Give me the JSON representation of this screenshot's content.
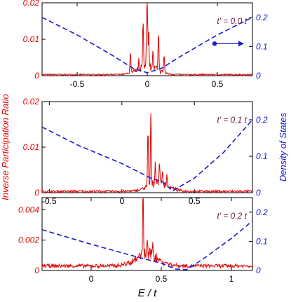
{
  "figure": {
    "ylabel_left": "Inverse Participation Ratio",
    "ylabel_right": "Density of States",
    "xlabel": "E / t"
  },
  "colors": {
    "ipr": "#e00000",
    "dos": "#1a1ad6",
    "annotation": "#6b1a4a",
    "axis": "#000000"
  },
  "chart_data": [
    {
      "type": "line",
      "panel": "top",
      "annotation": "t' = 0.0 t",
      "xlim": [
        -0.75,
        0.75
      ],
      "ylim_left": [
        0,
        0.02
      ],
      "ylim_right": [
        0,
        0.25
      ],
      "x_ticks": [
        "-0.5",
        "0",
        "0.5"
      ],
      "x_tick_values": [
        -0.5,
        0,
        0.5
      ],
      "y_left_ticks": [
        "0",
        "0.01",
        "0.02"
      ],
      "y_left_tick_values": [
        0,
        0.01,
        0.02
      ],
      "y_right_ticks": [
        "0",
        "0.1",
        "0.2"
      ],
      "y_right_tick_values": [
        0,
        0.1,
        0.2
      ],
      "series": [
        {
          "axis": "left",
          "style": "solid",
          "peaks": [
            [
              -0.12,
              0.006
            ],
            [
              -0.06,
              0.003
            ],
            [
              -0.03,
              0.012
            ],
            [
              -0.005,
              0.008
            ],
            [
              0.0,
              0.02
            ],
            [
              0.01,
              0.009
            ],
            [
              0.04,
              0.004
            ],
            [
              0.08,
              0.011
            ],
            [
              0.12,
              0.005
            ]
          ],
          "baseline": 0.0003,
          "envelope_center": 0,
          "envelope_width": 0.1,
          "envelope_height": 0.0025,
          "noise": 0.0002
        },
        {
          "axis": "right",
          "style": "dashed",
          "points": [
            [
              -0.75,
              0.2
            ],
            [
              -0.5,
              0.14
            ],
            [
              -0.25,
              0.07
            ],
            [
              -0.1,
              0.025
            ],
            [
              0.0,
              0.01
            ],
            [
              0.1,
              0.025
            ],
            [
              0.25,
              0.07
            ],
            [
              0.5,
              0.14
            ],
            [
              0.75,
              0.2
            ]
          ]
        }
      ],
      "arrow_marker": {
        "x": 0.48,
        "y_right": 0.11,
        "direction": "right"
      }
    },
    {
      "type": "line",
      "panel": "middle",
      "annotation": "t' = 0.1 t",
      "xlim": [
        -0.55,
        0.9
      ],
      "ylim_left": [
        0,
        0.02
      ],
      "ylim_right": [
        0,
        0.25
      ],
      "x_ticks": [
        "-0.5",
        "0",
        "0.5"
      ],
      "x_tick_values": [
        -0.5,
        0,
        0.5
      ],
      "y_left_ticks": [
        "0",
        "0.01",
        "0.02"
      ],
      "y_left_tick_values": [
        0,
        0.01,
        0.02
      ],
      "y_right_ticks": [
        "0",
        "0.1",
        "0.2"
      ],
      "y_right_tick_values": [
        0,
        0.1,
        0.2
      ],
      "series": [
        {
          "axis": "left",
          "style": "solid",
          "peaks": [
            [
              0.18,
              0.013
            ],
            [
              0.2,
              0.016
            ],
            [
              0.23,
              0.005
            ],
            [
              0.26,
              0.004
            ],
            [
              0.28,
              0.003
            ],
            [
              0.31,
              0.002
            ]
          ],
          "baseline": 0.0003,
          "envelope_center": 0.25,
          "envelope_width": 0.1,
          "envelope_height": 0.002,
          "noise": 0.00025
        },
        {
          "axis": "right",
          "style": "dashed",
          "points": [
            [
              -0.55,
              0.18
            ],
            [
              -0.3,
              0.13
            ],
            [
              0.0,
              0.08
            ],
            [
              0.2,
              0.04
            ],
            [
              0.28,
              0.03
            ],
            [
              0.35,
              0.005
            ],
            [
              0.5,
              0.04
            ],
            [
              0.7,
              0.11
            ],
            [
              0.9,
              0.2
            ]
          ]
        }
      ]
    },
    {
      "type": "line",
      "panel": "bottom",
      "annotation": "t' = 0.2 t",
      "xlim": [
        -0.35,
        1.15
      ],
      "ylim_left": [
        0,
        0.0048
      ],
      "ylim_right": [
        0,
        0.25
      ],
      "x_ticks": [
        "0",
        "0.5",
        "1"
      ],
      "x_tick_values": [
        0,
        0.5,
        1
      ],
      "y_left_ticks": [
        "0",
        "0.002",
        "0.004"
      ],
      "y_left_tick_values": [
        0,
        0.002,
        0.004
      ],
      "y_right_ticks": [
        "0",
        "0.1",
        "0.2"
      ],
      "y_right_tick_values": [
        0,
        0.1,
        0.2
      ],
      "series": [
        {
          "axis": "left",
          "style": "solid",
          "peaks": [
            [
              0.37,
              0.0042
            ],
            [
              0.4,
              0.0012
            ],
            [
              0.44,
              0.001
            ]
          ],
          "baseline": 0.0003,
          "envelope_center": 0.4,
          "envelope_width": 0.12,
          "envelope_height": 0.0008,
          "noise": 0.00012
        },
        {
          "axis": "right",
          "style": "dashed",
          "points": [
            [
              -0.35,
              0.14
            ],
            [
              0.0,
              0.09
            ],
            [
              0.3,
              0.05
            ],
            [
              0.5,
              0.025
            ],
            [
              0.6,
              0.005
            ],
            [
              0.68,
              0.003
            ],
            [
              0.8,
              0.04
            ],
            [
              1.0,
              0.11
            ],
            [
              1.15,
              0.17
            ]
          ]
        }
      ]
    }
  ]
}
